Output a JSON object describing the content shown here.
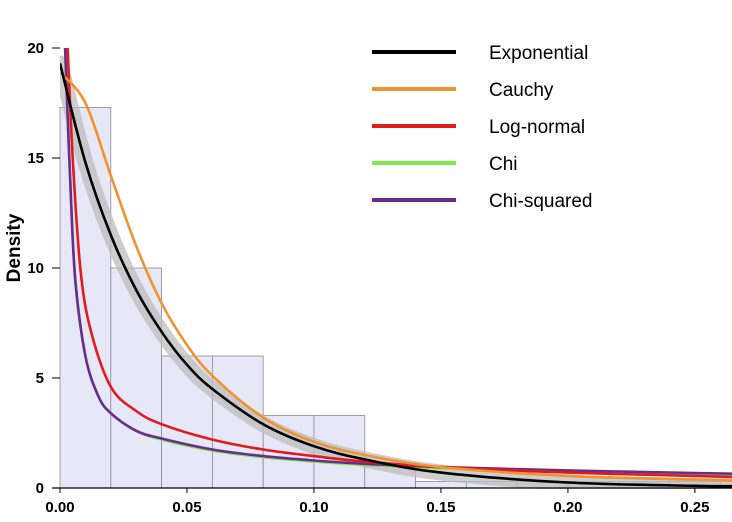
{
  "chart_data": {
    "type": "histogram",
    "title": "",
    "xlabel": "",
    "ylabel": "Density",
    "xlim": [
      0.0,
      0.265
    ],
    "ylim": [
      0,
      20
    ],
    "xticks": [
      0.0,
      0.05,
      0.1,
      0.15,
      0.2,
      0.25
    ],
    "xtick_labels": [
      "0.00",
      "0.05",
      "0.10",
      "0.15",
      "0.20",
      "0.25"
    ],
    "yticks": [
      0,
      5,
      10,
      15,
      20
    ],
    "ytick_labels": [
      "0",
      "5",
      "10",
      "15",
      "20"
    ],
    "grid": false,
    "legend_position": "top-right",
    "bar_color": "#e6e8f8",
    "bar_edge_color": "#8a8a9a",
    "confidence_band_color": "#bdbdbd",
    "histogram": [
      {
        "bin_start": 0.0,
        "bin_end": 0.02,
        "density": 17.3
      },
      {
        "bin_start": 0.02,
        "bin_end": 0.04,
        "density": 10.0
      },
      {
        "bin_start": 0.04,
        "bin_end": 0.06,
        "density": 6.0
      },
      {
        "bin_start": 0.06,
        "bin_end": 0.08,
        "density": 6.0
      },
      {
        "bin_start": 0.08,
        "bin_end": 0.1,
        "density": 3.3
      },
      {
        "bin_start": 0.1,
        "bin_end": 0.12,
        "density": 3.3
      },
      {
        "bin_start": 0.12,
        "bin_end": 0.14,
        "density": 1.0
      },
      {
        "bin_start": 0.14,
        "bin_end": 0.16,
        "density": 0.3
      },
      {
        "bin_start": 0.16,
        "bin_end": 0.18,
        "density": 0.3
      },
      {
        "bin_start": 0.18,
        "bin_end": 0.2,
        "density": 0.3
      },
      {
        "bin_start": 0.2,
        "bin_end": 0.22,
        "density": 0.3
      },
      {
        "bin_start": 0.22,
        "bin_end": 0.24,
        "density": 0.3
      },
      {
        "bin_start": 0.24,
        "bin_end": 0.26,
        "density": 0.3
      }
    ],
    "series": [
      {
        "name": "Exponential",
        "color": "#000000",
        "x": [
          0.0,
          0.01,
          0.02,
          0.03,
          0.04,
          0.05,
          0.06,
          0.08,
          0.1,
          0.12,
          0.15,
          0.2,
          0.25,
          0.265
        ],
        "y": [
          19.3,
          14.8,
          11.5,
          9.0,
          7.1,
          5.6,
          4.5,
          2.9,
          1.9,
          1.3,
          0.7,
          0.25,
          0.1,
          0.08
        ]
      },
      {
        "name": "Cauchy",
        "color": "#f0922e",
        "x": [
          0.0,
          0.01,
          0.02,
          0.03,
          0.04,
          0.05,
          0.06,
          0.08,
          0.1,
          0.12,
          0.15,
          0.2,
          0.25,
          0.265
        ],
        "y": [
          18.9,
          17.5,
          14.2,
          11.0,
          8.4,
          6.5,
          5.1,
          3.2,
          2.1,
          1.5,
          0.95,
          0.55,
          0.38,
          0.34
        ]
      },
      {
        "name": "Log-normal",
        "color": "#e31a1c",
        "x": [
          0.003,
          0.005,
          0.008,
          0.012,
          0.02,
          0.03,
          0.04,
          0.06,
          0.08,
          0.1,
          0.12,
          0.15,
          0.2,
          0.25,
          0.265
        ],
        "y": [
          20.0,
          15.0,
          10.0,
          7.2,
          4.6,
          3.5,
          2.9,
          2.2,
          1.75,
          1.45,
          1.2,
          0.95,
          0.7,
          0.55,
          0.5
        ]
      },
      {
        "name": "Chi",
        "color": "#7fe84a",
        "x": [
          0.002,
          0.004,
          0.006,
          0.01,
          0.015,
          0.02,
          0.03,
          0.04,
          0.06,
          0.08,
          0.1,
          0.12,
          0.15,
          0.2,
          0.25,
          0.265
        ],
        "y": [
          20.0,
          14.0,
          9.5,
          6.0,
          4.2,
          3.4,
          2.6,
          2.2,
          1.7,
          1.4,
          1.2,
          1.05,
          0.9,
          0.75,
          0.62,
          0.6
        ]
      },
      {
        "name": "Chi-squared",
        "color": "#6a2c91",
        "x": [
          0.002,
          0.004,
          0.006,
          0.01,
          0.015,
          0.02,
          0.03,
          0.04,
          0.06,
          0.08,
          0.1,
          0.12,
          0.15,
          0.2,
          0.25,
          0.265
        ],
        "y": [
          20.0,
          14.0,
          9.5,
          6.0,
          4.2,
          3.4,
          2.6,
          2.25,
          1.75,
          1.45,
          1.25,
          1.1,
          0.95,
          0.8,
          0.68,
          0.65
        ]
      }
    ]
  }
}
